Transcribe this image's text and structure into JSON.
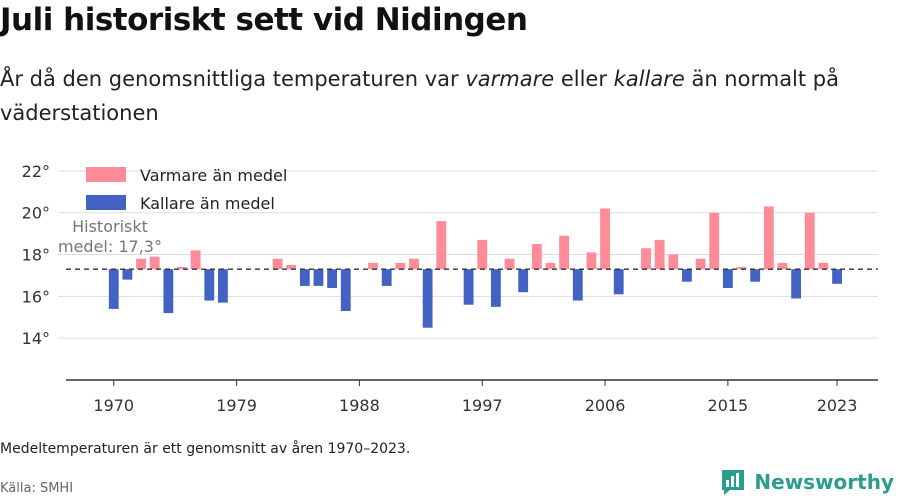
{
  "title": "Juli historiskt sett vid Nidingen",
  "subtitle": {
    "part1": "År då den genomsnittliga temperaturen var ",
    "warm_word": "varmare",
    "part2": " eller ",
    "cold_word": "kallare",
    "part3": " än normalt på väderstationen"
  },
  "note": "Medeltemperaturen är ett genomsnitt av åren 1970–2023.",
  "source": "Källa: SMHI",
  "brand": "Newsworthy",
  "colors": {
    "warm": "#ff8a98",
    "cold": "#4263c4",
    "grid": "#dddddd",
    "axis": "#333333",
    "brand": "#2a9d8f"
  },
  "chart_data": {
    "type": "bar",
    "baseline": 17.3,
    "baseline_label_line1": "Historiskt",
    "baseline_label_line2": "medel: 17,3°",
    "legend": {
      "warm": "Varmare än medel",
      "cold": "Kallare än medel",
      "position": "top-left"
    },
    "ylim": [
      12,
      23
    ],
    "yticks": [
      14,
      16,
      18,
      20,
      22
    ],
    "ytick_labels": [
      "14°",
      "16°",
      "18°",
      "20°",
      "22°"
    ],
    "xticks": [
      1970,
      1979,
      1988,
      1997,
      2006,
      2015,
      2023
    ],
    "xtick_labels": [
      "1970",
      "1979",
      "1988",
      "1997",
      "2006",
      "2015",
      "2023"
    ],
    "xlim": [
      1966.5,
      2026
    ],
    "grid": true,
    "years": [
      1970,
      1971,
      1972,
      1973,
      1974,
      1975,
      1976,
      1977,
      1978,
      1979,
      1980,
      1981,
      1982,
      1983,
      1984,
      1985,
      1986,
      1987,
      1988,
      1989,
      1990,
      1991,
      1992,
      1993,
      1994,
      1995,
      1996,
      1997,
      1998,
      1999,
      2000,
      2001,
      2002,
      2003,
      2004,
      2005,
      2006,
      2007,
      2008,
      2009,
      2010,
      2011,
      2012,
      2013,
      2014,
      2015,
      2016,
      2017,
      2018,
      2019,
      2020,
      2021,
      2022,
      2023
    ],
    "values": [
      15.4,
      16.8,
      17.8,
      17.9,
      15.2,
      17.4,
      18.2,
      15.8,
      15.7,
      17.3,
      17.3,
      17.3,
      17.8,
      17.5,
      16.5,
      16.5,
      16.4,
      15.3,
      17.3,
      17.6,
      16.5,
      17.6,
      17.8,
      14.5,
      19.6,
      17.3,
      15.6,
      18.7,
      15.5,
      17.8,
      16.2,
      18.5,
      17.6,
      18.9,
      15.8,
      18.1,
      20.2,
      16.1,
      17.3,
      18.3,
      18.7,
      18.0,
      16.7,
      17.8,
      20.0,
      16.4,
      17.4,
      16.7,
      20.3,
      17.6,
      15.9,
      20.0,
      17.6,
      16.6
    ]
  }
}
